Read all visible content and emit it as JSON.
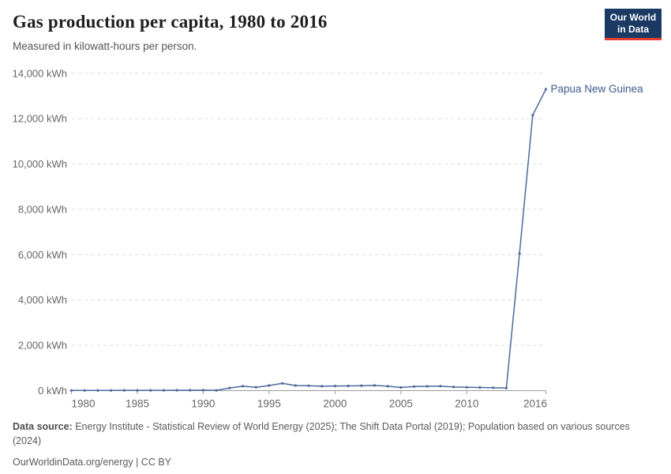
{
  "header": {
    "title": "Gas production per capita, 1980 to 2016",
    "subtitle": "Measured in kilowatt-hours per person.",
    "logo": {
      "line1": "Our World",
      "line2": "in Data",
      "bg_color": "#1A3A64",
      "accent_color": "#E23D33"
    }
  },
  "chart_data": {
    "type": "line",
    "title": "Gas production per capita, 1980 to 2016",
    "subtitle": "Measured in kilowatt-hours per person.",
    "unit": "kWh",
    "x": [
      1980,
      1981,
      1982,
      1983,
      1984,
      1985,
      1986,
      1987,
      1988,
      1989,
      1990,
      1991,
      1992,
      1993,
      1994,
      1995,
      1996,
      1997,
      1998,
      1999,
      2000,
      2001,
      2002,
      2003,
      2004,
      2005,
      2006,
      2007,
      2008,
      2009,
      2010,
      2011,
      2012,
      2013,
      2014,
      2015,
      2016
    ],
    "series": [
      {
        "name": "Papua New Guinea",
        "color": "#4C6A9C",
        "label_color": "#3E5C8F",
        "values": [
          10,
          10,
          11,
          12,
          13,
          13,
          14,
          15,
          16,
          17,
          20,
          15,
          120,
          195,
          150,
          225,
          320,
          225,
          215,
          195,
          205,
          210,
          220,
          230,
          195,
          140,
          180,
          190,
          200,
          160,
          150,
          140,
          130,
          115,
          6050,
          12150,
          13300
        ]
      }
    ],
    "ylim": [
      0,
      14000
    ],
    "yticks": [
      {
        "value": 0,
        "label": "0 kWh"
      },
      {
        "value": 2000,
        "label": "2,000 kWh"
      },
      {
        "value": 4000,
        "label": "4,000 kWh"
      },
      {
        "value": 6000,
        "label": "6,000 kWh"
      },
      {
        "value": 8000,
        "label": "8,000 kWh"
      },
      {
        "value": 10000,
        "label": "10,000 kWh"
      },
      {
        "value": 12000,
        "label": "12,000 kWh"
      },
      {
        "value": 14000,
        "label": "14,000 kWh"
      }
    ],
    "xticks": [
      {
        "value": 1980,
        "label": "1980"
      },
      {
        "value": 1985,
        "label": "1985"
      },
      {
        "value": 1990,
        "label": "1990"
      },
      {
        "value": 1995,
        "label": "1995"
      },
      {
        "value": 2000,
        "label": "2000"
      },
      {
        "value": 2005,
        "label": "2005"
      },
      {
        "value": 2010,
        "label": "2010"
      },
      {
        "value": 2016,
        "label": "2016"
      }
    ],
    "grid": "horizontal-dashed",
    "legend_position": "end-of-line-label",
    "colors": {
      "gridline": "#d9d9d9",
      "axis": "#9b9b9b",
      "tick_label": "#666666"
    }
  },
  "footer": {
    "data_source_label": "Data source:",
    "data_source_text": "Energy Institute - Statistical Review of World Energy (2025); The Shift Data Portal (2019); Population based on various sources (2024)",
    "attribution": "OurWorldinData.org/energy | CC BY"
  }
}
